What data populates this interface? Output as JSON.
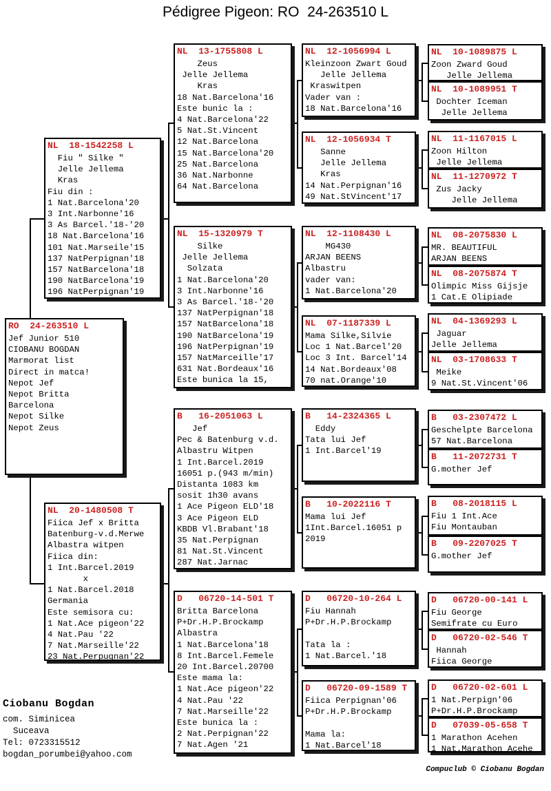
{
  "title": "Pédigree Pigeon: RO  24-263510 L",
  "colors": {
    "ring_number_red": "#cc2222",
    "text_black": "#000000",
    "box_shadow": "#1a1a1a",
    "background": "#ffffff"
  },
  "boxes": {
    "subject": {
      "header": "RO  24-263510 L",
      "lines": [
        "Jef Junior 510",
        "CIOBANU BOGDAN",
        "Marmorat list",
        "Direct in matca!",
        "Nepot Jef",
        "Nepot Britta",
        "Barcelona",
        "Nepot Silke",
        "Nepot Zeus"
      ]
    },
    "sire": {
      "header": "NL  18-1542258 L",
      "lines": [
        "  Fiu \" Silke \"",
        "  Jelle Jellema",
        "  Kras",
        "Fiu din :",
        "1 Nat.Barcelona'20",
        "3 Int.Narbonne'16",
        "3 As Barcel.'18-'20",
        "18 Nat.Barcelona'16",
        "101 Nat.Marseile'15",
        "137 NatPerpignan'18",
        "157 NatBarcelona'18",
        "190 NatBarcelona'19",
        "196 NatPerpignan'19"
      ]
    },
    "dam": {
      "header": "NL  20-1480508 T",
      "lines": [
        "Fiica Jef x Britta",
        "Batenburg-v.d.Merwe",
        "Albastra witpen",
        "Fiica din:",
        "1 Int.Barcel.2019",
        "       x",
        "1 Nat.Barcel.2018",
        "Germania",
        "Este semisora cu:",
        "1 Nat.Ace pigeon'22",
        "4 Nat.Pau '22",
        "7 Nat.Marseille'22",
        "23 Nat.Perpugnan'22"
      ]
    },
    "gp1": {
      "header": "NL  13-1755808 L",
      "lines": [
        "    Zeus",
        " Jelle Jellema",
        "    Kras",
        "18 Nat.Barcelona'16",
        "Este bunic la :",
        "4 Nat.Barcelona'22",
        "5 Nat.St.Vincent",
        "12 Nat.Barcelona",
        "15 Nat.Barcelona'20",
        "25 Nat.Barcelona",
        "36 Nat.Narbonne",
        "64 Nat.Barcelona"
      ]
    },
    "gp2": {
      "header": "NL  15-1320979 T",
      "lines": [
        "    Silke",
        " Jelle Jellema",
        "  Solzata",
        "1 Nat.Barcelona'20",
        "3 Int.Narbonne'16",
        "3 As Barcel.'18-'20",
        "137 NatPerpignan'18",
        "157 NatBarcelona'18",
        "190 NatBarcelona'19",
        "196 NatPerpignan'19",
        "157 NatMarceille'17",
        "631 Nat.Bordeaux'16",
        "Este bunica la 15,"
      ]
    },
    "gp3": {
      "header": "B   16-2051063 L",
      "lines": [
        "   Jef",
        "Pec & Batenburg v.d.",
        "Albastru Witpen",
        "1 Int.Barcel.2019",
        "16051 p.(943 m/min)",
        "Distanta 1083 km",
        "sosit 1h30 avans",
        "1 Ace Pigeon ELD'18",
        "3 Ace Pigeon ELD",
        "KBDB Vl.Brabant'18",
        "35 Nat.Perpignan",
        "81 Nat.St.Vincent",
        "287 Nat.Jarnac"
      ]
    },
    "gp4": {
      "header": "D   06720-14-501 T",
      "lines": [
        "Britta Barcelona",
        "P+Dr.H.P.Brockamp",
        "Albastra",
        "1 Nat.Barcelona'18",
        "8 Int.Barcel.Femele",
        "20 Int.Barcel.20700",
        "Este mama la:",
        "1 Nat.Ace pigeon'22",
        "4 Nat.Pau '22",
        "7 Nat.Marseille'22",
        "Este bunica la :",
        "2 Nat.Perpignan'22",
        "7 Nat.Agen '21"
      ]
    },
    "ggp1": {
      "header": "NL  12-1056994 L",
      "lines": [
        "Kleinzoon Zwart Goud",
        "   Jelle Jellema",
        " Kraswitpen",
        "Vader van :",
        "18 Nat.Barcelona'16"
      ]
    },
    "ggp2": {
      "header": "NL  12-1056934 T",
      "lines": [
        "   Sanne",
        "   Jelle Jellema",
        "   Kras",
        "14 Nat.Perpignan'16",
        "49 Nat.StVincent'17"
      ]
    },
    "ggp3": {
      "header": "NL  12-1108430 L",
      "lines": [
        "    MG430",
        "ARJAN BEENS",
        "Albastru",
        "vader van:",
        "1 Nat.Barcelona'20"
      ]
    },
    "ggp4": {
      "header": "NL  07-1187339 L",
      "lines": [
        "Mama Silke,Silvie",
        "Loc 1 Nat.Barcel'20",
        "Loc 3 Int. Barcel'14",
        "14 Nat.Bordeaux'08",
        "70 nat.Orange'10"
      ]
    },
    "ggp5": {
      "header": "B   14-2324365 L",
      "lines": [
        "  Eddy",
        "Tata lui Jef",
        "1 Int.Barcel'19"
      ]
    },
    "ggp6": {
      "header": "B   10-2022116 T",
      "lines": [
        "Mama lui Jef",
        "1Int.Barcel.16051 p",
        "2019"
      ]
    },
    "ggp7": {
      "header": "D   06720-10-264 L",
      "lines": [
        "Fiu Hannah",
        "P+Dr.H.P.Brockamp",
        "",
        "Tata la :",
        "1 Nat.Barcel.'18"
      ]
    },
    "ggp8": {
      "header": "D   06720-09-1589 T",
      "lines": [
        "Fiica Perpignan'06",
        "P+Dr.H.P.Brockamp",
        "",
        "Mama la:",
        "1 Nat.Barcel'18"
      ]
    },
    "gggp1": {
      "header": "NL  10-1089875 L",
      "lines": [
        "Zoon Zward Goud",
        "   Jelle Jellema"
      ]
    },
    "gggp2": {
      "header": "NL  10-1089951 T",
      "lines": [
        " Dochter Iceman",
        "  Jelle Jellema"
      ]
    },
    "gggp3": {
      "header": "NL  11-1167015 L",
      "lines": [
        "Zoon Hilton",
        " Jelle Jellema"
      ]
    },
    "gggp4": {
      "header": "NL  11-1270972 T",
      "lines": [
        " Zus Jacky",
        "    Jelle Jellema"
      ]
    },
    "gggp5": {
      "header": "NL  08-2075830 L",
      "lines": [
        "MR. BEAUTIFUL",
        "ARJAN BEENS"
      ]
    },
    "gggp6": {
      "header": "NL  08-2075874 T",
      "lines": [
        "Olimpic Miss Gijsje",
        "1 Cat.E Olipiade"
      ]
    },
    "gggp7": {
      "header": "NL  04-1369293 L",
      "lines": [
        " Jaguar",
        "Jelle Jellema"
      ]
    },
    "gggp8": {
      "header": "NL  03-1708633 T",
      "lines": [
        " Meike",
        "9 Nat.St.Vincent'06"
      ]
    },
    "gggp9": {
      "header": "B   03-2307472 L",
      "lines": [
        "Geschelpte Barcelona",
        "57 Nat.Barcelona"
      ]
    },
    "gggp10": {
      "header": "B   11-2072731 T",
      "lines": [
        "G.mother Jef"
      ]
    },
    "gggp11": {
      "header": "B   08-2018115 L",
      "lines": [
        "Fiu 1 Int.Ace",
        "Fiu Montauban"
      ]
    },
    "gggp12": {
      "header": "B   09-2207025 T",
      "lines": [
        "G.mother Jef"
      ]
    },
    "gggp13": {
      "header": "D   06720-00-141 L",
      "lines": [
        "Fiu George",
        "Semifrate cu Euro"
      ]
    },
    "gggp14": {
      "header": "D   06720-02-546 T",
      "lines": [
        " Hannah",
        "Fiica George"
      ]
    },
    "gggp15": {
      "header": "D   06720-02-601 L",
      "lines": [
        "1 Nat.Perpign'06",
        "P+Dr.H.P.Brockamp"
      ]
    },
    "gggp16": {
      "header": "D   07039-05-658 T",
      "lines": [
        "1 Marathon Acehen",
        "1 Nat.Marathon Acehe"
      ]
    }
  },
  "footer": {
    "owner_name": "Ciobanu Bogdan",
    "line1": "com. Siminicea",
    "line2": "  Suceava",
    "line3": "Tel: 0723315512",
    "line4": "bogdan_porumbei@yahoo.com",
    "credit": "Compuclub © Ciobanu Bogdan"
  }
}
